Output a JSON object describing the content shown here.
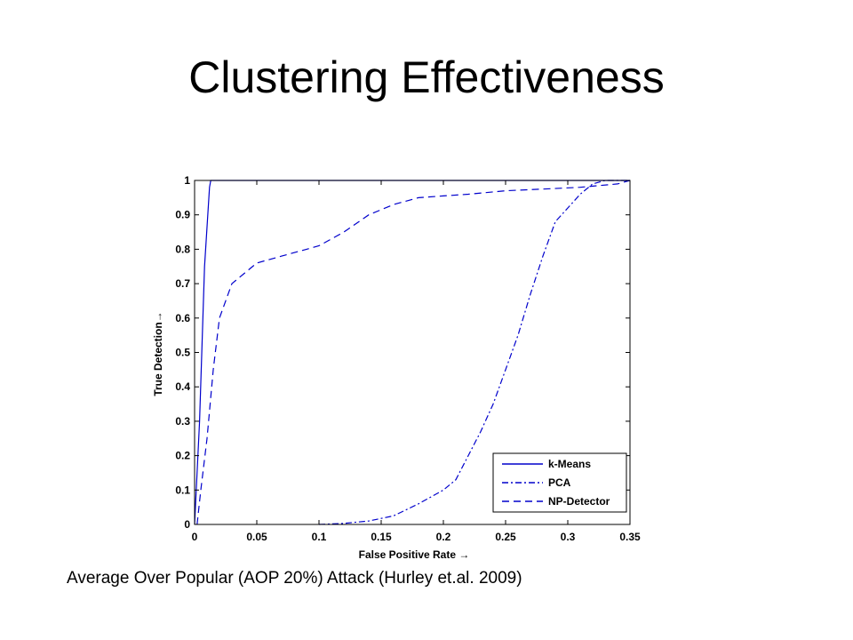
{
  "slide": {
    "title": "Clustering Effectiveness",
    "caption": "Average Over Popular (AOP 20%) Attack (Hurley  et.al. 2009)"
  },
  "chart_data": {
    "type": "line",
    "xlabel": "False Positive Rate →",
    "ylabel": "True Detection→",
    "xlim": [
      0,
      0.35
    ],
    "ylim": [
      0,
      1
    ],
    "xticks": [
      0,
      0.05,
      0.1,
      0.15,
      0.2,
      0.25,
      0.3,
      0.35
    ],
    "xtick_labels": [
      "0",
      "0.05",
      "0.1",
      "0.15",
      "0.2",
      "0.25",
      "0.3",
      "0.35"
    ],
    "yticks": [
      0,
      0.1,
      0.2,
      0.3,
      0.4,
      0.5,
      0.6,
      0.7,
      0.8,
      0.9,
      1
    ],
    "ytick_labels": [
      "0",
      "0.1",
      "0.2",
      "0.3",
      "0.4",
      "0.5",
      "0.6",
      "0.7",
      "0.8",
      "0.9",
      "1"
    ],
    "grid": false,
    "legend_position": "bottom-right",
    "line_color": "#0000cc",
    "series": [
      {
        "name": "k-Means",
        "style": "solid",
        "x": [
          0,
          0.004,
          0.008,
          0.012,
          0.013,
          0.35
        ],
        "y": [
          0,
          0.3,
          0.75,
          0.98,
          1,
          1
        ]
      },
      {
        "name": "PCA",
        "style": "dashdot",
        "x": [
          0.1,
          0.12,
          0.14,
          0.16,
          0.18,
          0.2,
          0.21,
          0.22,
          0.23,
          0.24,
          0.25,
          0.26,
          0.27,
          0.28,
          0.29,
          0.3,
          0.31,
          0.32,
          0.33,
          0.35
        ],
        "y": [
          0,
          0.003,
          0.01,
          0.025,
          0.06,
          0.1,
          0.13,
          0.2,
          0.27,
          0.35,
          0.45,
          0.55,
          0.67,
          0.78,
          0.88,
          0.92,
          0.96,
          0.99,
          1,
          1
        ]
      },
      {
        "name": "NP-Detector",
        "style": "dashed",
        "x": [
          0.002,
          0.005,
          0.01,
          0.015,
          0.02,
          0.03,
          0.04,
          0.05,
          0.07,
          0.09,
          0.1,
          0.12,
          0.14,
          0.16,
          0.18,
          0.2,
          0.22,
          0.25,
          0.28,
          0.31,
          0.34,
          0.35
        ],
        "y": [
          0,
          0.1,
          0.25,
          0.45,
          0.6,
          0.7,
          0.73,
          0.76,
          0.78,
          0.8,
          0.81,
          0.85,
          0.9,
          0.93,
          0.95,
          0.955,
          0.96,
          0.97,
          0.975,
          0.98,
          0.99,
          1
        ]
      }
    ]
  }
}
